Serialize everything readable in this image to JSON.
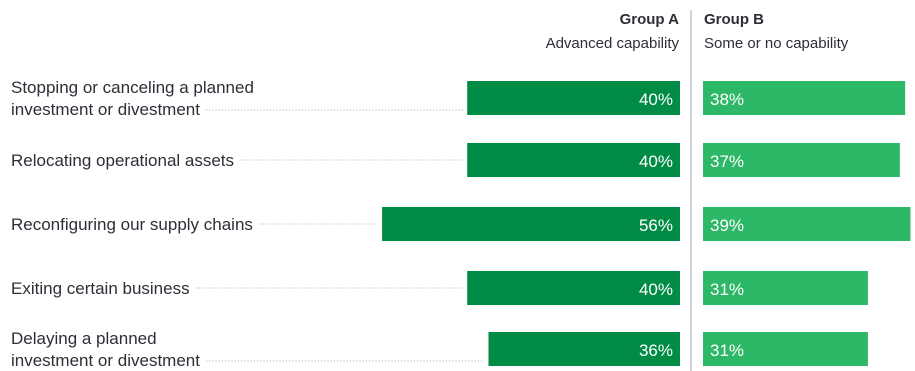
{
  "chart_data": {
    "type": "bar",
    "orientation": "horizontal",
    "layout": "diverging-from-center",
    "groups": [
      {
        "title": "Group A",
        "subtitle": "Advanced capability",
        "color": "#008c45"
      },
      {
        "title": "Group B",
        "subtitle": "Some or no capability",
        "color": "#2cb866"
      }
    ],
    "categories": [
      [
        "Stopping or canceling a planned",
        "investment or divestment"
      ],
      [
        "Relocating operational assets"
      ],
      [
        "Reconfiguring our supply chains"
      ],
      [
        "Exiting certain business"
      ],
      [
        "Delaying a planned",
        "investment or divestment"
      ]
    ],
    "series": [
      {
        "name": "Group A",
        "values": [
          40,
          40,
          56,
          40,
          36
        ],
        "labels": [
          "40%",
          "40%",
          "56%",
          "40%",
          "36%"
        ]
      },
      {
        "name": "Group B",
        "values": [
          38,
          37,
          39,
          31,
          31
        ],
        "labels": [
          "38%",
          "37%",
          "39%",
          "31%",
          "31%"
        ]
      }
    ],
    "value_unit": "%",
    "legend": "top",
    "grid": false
  }
}
